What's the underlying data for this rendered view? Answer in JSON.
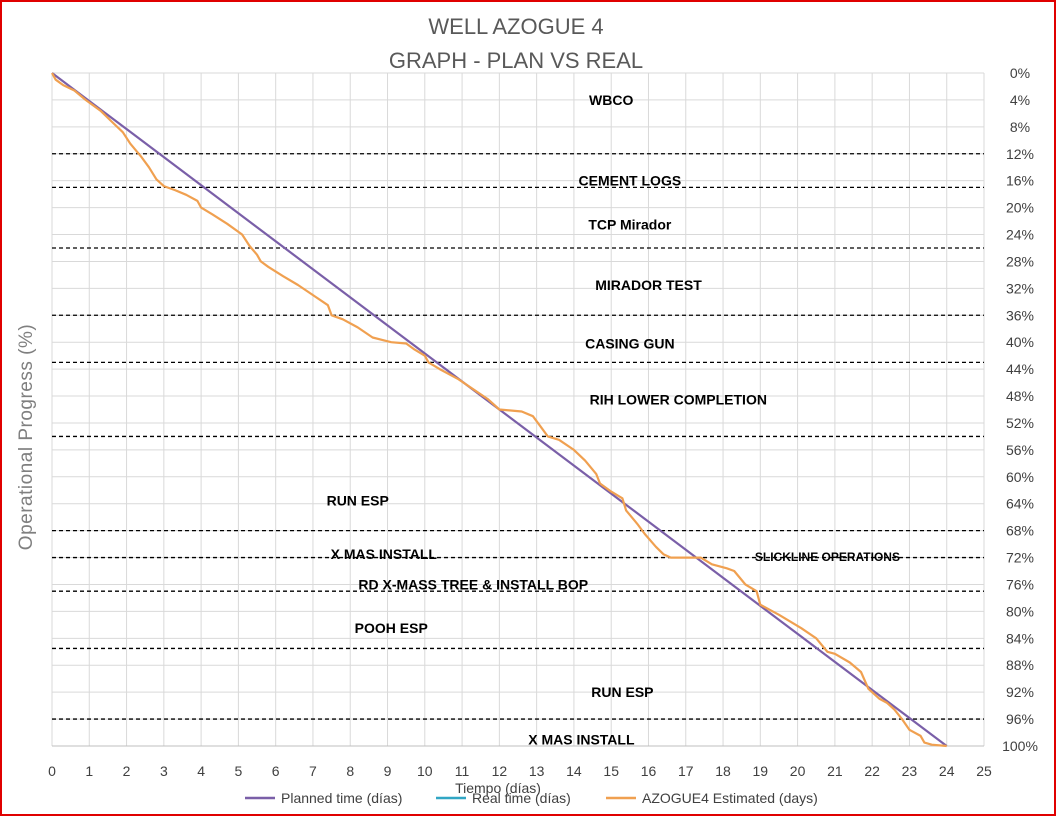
{
  "chart_data": {
    "type": "line",
    "title": "WELL AZOGUE 4",
    "subtitle": "GRAPH  - PLAN VS REAL",
    "xlabel": "Tiempo (días)",
    "ylabel": "Operational Progress (%)",
    "xlim": [
      0,
      25
    ],
    "ylim": [
      0,
      100
    ],
    "y_reversed": true,
    "y_axis_side": "right",
    "grid": true,
    "legend_position": "bottom",
    "x_ticks": [
      "0",
      "1",
      "2",
      "3",
      "4",
      "5",
      "6",
      "7",
      "8",
      "9",
      "10",
      "11",
      "12",
      "13",
      "14",
      "15",
      "16",
      "17",
      "18",
      "19",
      "20",
      "21",
      "22",
      "23",
      "24",
      "25"
    ],
    "y_ticks": [
      "0%",
      "4%",
      "8%",
      "12%",
      "16%",
      "20%",
      "24%",
      "28%",
      "32%",
      "36%",
      "40%",
      "44%",
      "48%",
      "52%",
      "56%",
      "60%",
      "64%",
      "68%",
      "72%",
      "76%",
      "80%",
      "84%",
      "88%",
      "92%",
      "96%",
      "100%"
    ],
    "series": [
      {
        "name": "Planned time (días)",
        "color": "#7a5fa8",
        "points": [
          [
            0,
            0
          ],
          [
            24,
            100
          ]
        ]
      },
      {
        "name": "Real time (días)",
        "color": "#31a6c4",
        "points": []
      },
      {
        "name": "AZOGUE4 Estimated (days)",
        "color": "#f0a050",
        "points": [
          [
            0,
            0
          ],
          [
            0.1,
            1
          ],
          [
            0.3,
            1.8
          ],
          [
            0.6,
            2.6
          ],
          [
            0.9,
            4.0
          ],
          [
            1.3,
            5.6
          ],
          [
            1.6,
            7.2
          ],
          [
            1.9,
            8.8
          ],
          [
            2.1,
            10.5
          ],
          [
            2.4,
            12.5
          ],
          [
            2.6,
            14.0
          ],
          [
            2.8,
            15.8
          ],
          [
            3.0,
            16.8
          ],
          [
            3.3,
            17.4
          ],
          [
            3.6,
            18.1
          ],
          [
            3.9,
            19.0
          ],
          [
            4.0,
            20.0
          ],
          [
            4.3,
            21.0
          ],
          [
            4.7,
            22.4
          ],
          [
            5.1,
            24.0
          ],
          [
            5.3,
            25.7
          ],
          [
            5.5,
            27.0
          ],
          [
            5.6,
            28.0
          ],
          [
            5.8,
            28.8
          ],
          [
            6.2,
            30.2
          ],
          [
            6.6,
            31.5
          ],
          [
            7.0,
            33.0
          ],
          [
            7.4,
            34.5
          ],
          [
            7.5,
            36.0
          ],
          [
            7.8,
            36.6
          ],
          [
            8.2,
            37.8
          ],
          [
            8.6,
            39.3
          ],
          [
            9.1,
            40.0
          ],
          [
            9.5,
            40.2
          ],
          [
            9.7,
            41.0
          ],
          [
            10.0,
            42.0
          ],
          [
            10.1,
            43.0
          ],
          [
            10.4,
            44.0
          ],
          [
            10.9,
            45.5
          ],
          [
            11.3,
            47.0
          ],
          [
            11.7,
            48.5
          ],
          [
            12.0,
            50.0
          ],
          [
            12.6,
            50.3
          ],
          [
            12.9,
            51.0
          ],
          [
            13.1,
            52.5
          ],
          [
            13.3,
            54.0
          ],
          [
            13.6,
            54.5
          ],
          [
            14.0,
            56.0
          ],
          [
            14.3,
            57.6
          ],
          [
            14.6,
            59.6
          ],
          [
            14.7,
            61.0
          ],
          [
            15.0,
            62.2
          ],
          [
            15.3,
            63.2
          ],
          [
            15.4,
            65.0
          ],
          [
            15.7,
            67.0
          ],
          [
            15.9,
            68.5
          ],
          [
            16.2,
            70.4
          ],
          [
            16.4,
            71.5
          ],
          [
            16.6,
            72.0
          ],
          [
            17.0,
            72.0
          ],
          [
            17.4,
            72.0
          ],
          [
            17.7,
            73.0
          ],
          [
            18.1,
            73.6
          ],
          [
            18.3,
            74.0
          ],
          [
            18.6,
            76.0
          ],
          [
            18.9,
            77.0
          ],
          [
            19.0,
            79.0
          ],
          [
            19.5,
            80.5
          ],
          [
            20.1,
            82.5
          ],
          [
            20.5,
            84.0
          ],
          [
            20.8,
            86.0
          ],
          [
            21.0,
            86.3
          ],
          [
            21.4,
            87.6
          ],
          [
            21.7,
            89.0
          ],
          [
            21.9,
            91.5
          ],
          [
            22.2,
            93.0
          ],
          [
            22.4,
            93.6
          ],
          [
            22.6,
            94.6
          ],
          [
            22.8,
            96.0
          ],
          [
            23.0,
            97.6
          ],
          [
            23.3,
            98.5
          ],
          [
            23.4,
            99.5
          ],
          [
            23.6,
            99.8
          ],
          [
            24.0,
            100.0
          ]
        ]
      }
    ],
    "phases": [
      {
        "label": "WBCO",
        "x": 15.0,
        "y": 4.0
      },
      {
        "label": "CEMENT LOGS",
        "x": 15.5,
        "y": 16.0
      },
      {
        "label": "TCP Mirador",
        "x": 15.5,
        "y": 22.5
      },
      {
        "label": "MIRADOR TEST",
        "x": 16.0,
        "y": 31.5
      },
      {
        "label": "CASING GUN",
        "x": 15.5,
        "y": 40.2
      },
      {
        "label": "RIH LOWER COMPLETION",
        "x": 16.8,
        "y": 48.5
      },
      {
        "label": "RUN ESP",
        "x": 8.2,
        "y": 63.5
      },
      {
        "label": "X MAS INSTALL",
        "x": 8.9,
        "y": 71.5
      },
      {
        "label": "SLICKLINE OPERATIONS",
        "x": 20.8,
        "y": 71.8
      },
      {
        "label": "RD X-MASS TREE & INSTALL BOP",
        "x": 11.3,
        "y": 76.0
      },
      {
        "label": "POOH ESP",
        "x": 9.1,
        "y": 82.5
      },
      {
        "label": "RUN ESP",
        "x": 15.3,
        "y": 92.0
      },
      {
        "label": "X MAS INSTALL",
        "x": 14.2,
        "y": 99.0
      }
    ],
    "phase_boundaries": [
      12,
      17,
      26,
      36,
      43,
      54,
      68,
      72,
      77,
      85.5,
      96
    ]
  }
}
